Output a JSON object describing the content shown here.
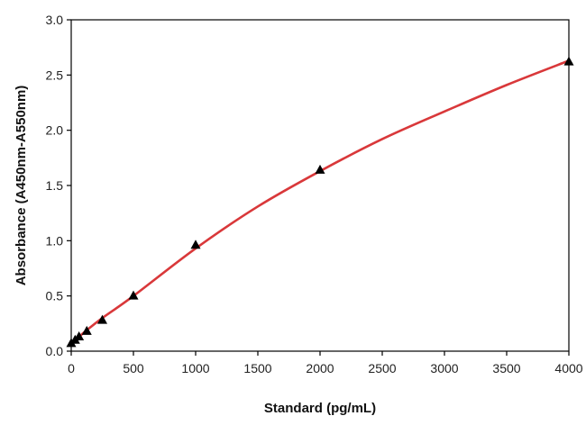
{
  "chart_data": {
    "type": "line",
    "title": "",
    "xlabel": "Standard (pg/mL)",
    "ylabel": "Absorbance (A450nm-A550nm)",
    "xlim": [
      0,
      4000
    ],
    "ylim": [
      0,
      3.0
    ],
    "x_ticks": [
      "0",
      "500",
      "1000",
      "1500",
      "2000",
      "2500",
      "3000",
      "3500",
      "4000"
    ],
    "y_ticks": [
      "0.0",
      "0.5",
      "1.0",
      "1.5",
      "2.0",
      "2.5",
      "3.0"
    ],
    "grid": false,
    "legend": "none",
    "series": [
      {
        "kind": "scatter",
        "marker": "triangle",
        "color": "#000000",
        "x": [
          0,
          31.25,
          62.5,
          125,
          250,
          500,
          1000,
          2000,
          4000
        ],
        "y": [
          0.07,
          0.1,
          0.13,
          0.18,
          0.28,
          0.5,
          0.96,
          1.64,
          2.62
        ]
      },
      {
        "kind": "line",
        "color": "#d9383a",
        "x": [
          0,
          31.25,
          62.5,
          125,
          250,
          500,
          1000,
          1500,
          2000,
          2500,
          3000,
          3500,
          4000
        ],
        "y": [
          0.07,
          0.1,
          0.13,
          0.19,
          0.3,
          0.5,
          0.93,
          1.31,
          1.63,
          1.92,
          2.17,
          2.41,
          2.63
        ]
      }
    ]
  }
}
